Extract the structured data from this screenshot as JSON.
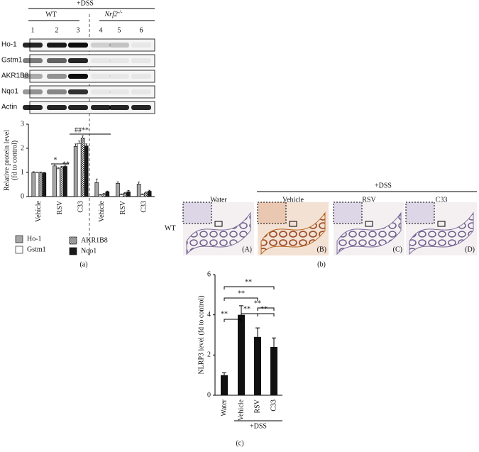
{
  "blot": {
    "treatment": "+DSS",
    "group_wt": "WT",
    "group_ko": "Nrf2",
    "group_ko_sup": "-/-",
    "lanes": [
      "1",
      "2",
      "3",
      "4",
      "5",
      "6"
    ],
    "bands": [
      "Ho-1",
      "Gstm1",
      "AKR1B8",
      "Nqo1",
      "Actin"
    ]
  },
  "histology": {
    "treatment": "+DSS",
    "columns": [
      "Water",
      "Vehicle",
      "RSV",
      "C33"
    ],
    "row": "WT",
    "panels": [
      "(A)",
      "(B)",
      "(C)",
      "(D)"
    ]
  },
  "captions": [
    "(a)",
    "(b)",
    "(c)"
  ],
  "chart_data": [
    {
      "type": "bar",
      "ylabel": [
        "Relative protein level",
        "(fd to control)"
      ],
      "categories": [
        "Vehicle",
        "RSV",
        "C33",
        "Vehicle",
        "RSV",
        "C33"
      ],
      "series": [
        {
          "name": "Ho-1",
          "color": "#a6a6a6",
          "values": [
            1,
            1.27,
            2.08,
            0.58,
            0.55,
            0.52
          ],
          "errors": [
            0.03,
            0.08,
            0.1,
            0.15,
            0.06,
            0.08
          ]
        },
        {
          "name": "Gstm1",
          "color": "#ffffff",
          "values": [
            1,
            1.15,
            2.2,
            0.06,
            0.08,
            0.08
          ],
          "errors": [
            0.02,
            0.05,
            0.1,
            0.02,
            0.03,
            0.03
          ]
        },
        {
          "name": "AKR1B8",
          "color": "#555555",
          "pattern": "checker",
          "values": [
            1,
            1.2,
            2.42,
            0.1,
            0.13,
            0.15
          ],
          "errors": [
            0.02,
            0.05,
            0.1,
            0.03,
            0.04,
            0.04
          ]
        },
        {
          "name": "Nqo1",
          "color": "#1a1a1a",
          "values": [
            0.98,
            1.25,
            2.1,
            0.2,
            0.2,
            0.22
          ],
          "errors": [
            0.02,
            0.05,
            0.08,
            0.03,
            0.05,
            0.04
          ]
        }
      ],
      "ylim": [
        0,
        3
      ],
      "yticks": [
        0,
        1,
        2,
        3
      ],
      "annotations": [
        "*",
        "**",
        "##",
        "**"
      ]
    },
    {
      "type": "bar",
      "ylabel": "NLRP3 level (fd to control)",
      "categories": [
        "Water",
        "Vehicle",
        "RSV",
        "C33"
      ],
      "color": "#111111",
      "values": [
        1,
        4,
        2.9,
        2.4
      ],
      "errors": [
        0.12,
        0.45,
        0.45,
        0.45
      ],
      "ylim": [
        0,
        6
      ],
      "yticks": [
        0,
        2,
        4,
        6
      ],
      "group_label": "+DSS",
      "annotations": [
        "**",
        "**",
        "**",
        "**",
        "**",
        "**"
      ]
    }
  ]
}
